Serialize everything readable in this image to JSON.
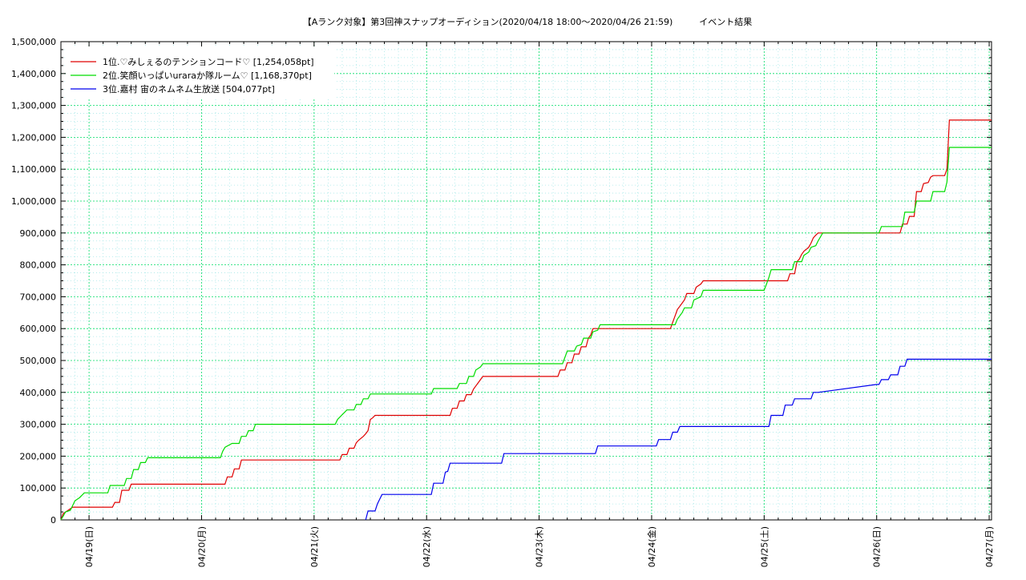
{
  "chart_data": {
    "type": "line",
    "title": "【Aランク対象】第3回神スナップオーディション(2020/04/18 18:00〜2020/04/26 21:59)　　　イベント結果",
    "xlabel": "",
    "ylabel": "",
    "ylim": [
      0,
      1500000
    ],
    "y_ticks": [
      0,
      100000,
      200000,
      300000,
      400000,
      500000,
      600000,
      700000,
      800000,
      900000,
      1000000,
      1100000,
      1200000,
      1300000,
      1400000,
      1500000
    ],
    "y_tick_labels": [
      "0",
      "100,000",
      "200,000",
      "300,000",
      "400,000",
      "500,000",
      "600,000",
      "700,000",
      "800,000",
      "900,000",
      "1,000,000",
      "1,100,000",
      "1,200,000",
      "1,300,000",
      "1,400,000",
      "1,500,000"
    ],
    "x_domain": [
      "2020-04-18 18:00",
      "2020-04-27 00:30"
    ],
    "x_ticks": [
      "2020-04-19 00:00",
      "2020-04-20 00:00",
      "2020-04-21 00:00",
      "2020-04-22 00:00",
      "2020-04-23 00:00",
      "2020-04-24 00:00",
      "2020-04-25 00:00",
      "2020-04-26 00:00",
      "2020-04-27 00:00"
    ],
    "x_tick_labels": [
      "04/19(日)",
      "04/20(月)",
      "04/21(火)",
      "04/22(水)",
      "04/23(木)",
      "04/24(金)",
      "04/25(土)",
      "04/26(日)",
      "04/27(月)"
    ],
    "grid": true,
    "legend_position": "top-left",
    "series": [
      {
        "name": "1位.♡みしぇるのテンションコード♡ [1,254,058pt]",
        "color": "#e00000",
        "points": [
          [
            "2020-04-18 18:00",
            0
          ],
          [
            "2020-04-18 18:30",
            20000
          ],
          [
            "2020-04-18 19:30",
            30000
          ],
          [
            "2020-04-18 20:30",
            40000
          ],
          [
            "2020-04-19 05:00",
            40000
          ],
          [
            "2020-04-19 05:30",
            55000
          ],
          [
            "2020-04-19 06:30",
            55000
          ],
          [
            "2020-04-19 07:00",
            93000
          ],
          [
            "2020-04-19 08:30",
            93000
          ],
          [
            "2020-04-19 09:00",
            112000
          ],
          [
            "2020-04-20 05:00",
            112000
          ],
          [
            "2020-04-20 05:30",
            135000
          ],
          [
            "2020-04-20 06:30",
            135000
          ],
          [
            "2020-04-20 07:00",
            160000
          ],
          [
            "2020-04-20 08:00",
            160000
          ],
          [
            "2020-04-20 08:30",
            188000
          ],
          [
            "2020-04-21 05:30",
            188000
          ],
          [
            "2020-04-21 06:00",
            205000
          ],
          [
            "2020-04-21 07:00",
            205000
          ],
          [
            "2020-04-21 07:30",
            225000
          ],
          [
            "2020-04-21 08:30",
            225000
          ],
          [
            "2020-04-21 09:00",
            242000
          ],
          [
            "2020-04-21 09:30",
            250000
          ],
          [
            "2020-04-21 10:30",
            262000
          ],
          [
            "2020-04-21 11:00",
            270000
          ],
          [
            "2020-04-21 11:30",
            280000
          ],
          [
            "2020-04-21 12:00",
            315000
          ],
          [
            "2020-04-21 12:30",
            320000
          ],
          [
            "2020-04-21 13:00",
            328000
          ],
          [
            "2020-04-22 05:00",
            328000
          ],
          [
            "2020-04-22 05:30",
            350000
          ],
          [
            "2020-04-22 06:30",
            350000
          ],
          [
            "2020-04-22 07:00",
            373000
          ],
          [
            "2020-04-22 08:00",
            373000
          ],
          [
            "2020-04-22 08:30",
            393000
          ],
          [
            "2020-04-22 09:30",
            393000
          ],
          [
            "2020-04-22 10:00",
            410000
          ],
          [
            "2020-04-22 10:30",
            420000
          ],
          [
            "2020-04-22 11:00",
            430000
          ],
          [
            "2020-04-22 12:00",
            450000
          ],
          [
            "2020-04-23 04:00",
            450000
          ],
          [
            "2020-04-23 04:30",
            470000
          ],
          [
            "2020-04-23 05:30",
            470000
          ],
          [
            "2020-04-23 06:00",
            493000
          ],
          [
            "2020-04-23 07:00",
            493000
          ],
          [
            "2020-04-23 07:30",
            520000
          ],
          [
            "2020-04-23 08:30",
            520000
          ],
          [
            "2020-04-23 09:00",
            543000
          ],
          [
            "2020-04-23 10:00",
            543000
          ],
          [
            "2020-04-23 10:30",
            570000
          ],
          [
            "2020-04-23 11:00",
            580000
          ],
          [
            "2020-04-23 11:30",
            600000
          ],
          [
            "2020-04-24 04:00",
            600000
          ],
          [
            "2020-04-24 04:30",
            620000
          ],
          [
            "2020-04-24 05:00",
            640000
          ],
          [
            "2020-04-24 05:30",
            660000
          ],
          [
            "2020-04-24 06:00",
            670000
          ],
          [
            "2020-04-24 06:30",
            680000
          ],
          [
            "2020-04-24 07:00",
            690000
          ],
          [
            "2020-04-24 07:30",
            710000
          ],
          [
            "2020-04-24 09:00",
            710000
          ],
          [
            "2020-04-24 09:30",
            730000
          ],
          [
            "2020-04-24 10:30",
            740000
          ],
          [
            "2020-04-24 11:00",
            750000
          ],
          [
            "2020-04-25 05:00",
            750000
          ],
          [
            "2020-04-25 05:30",
            772000
          ],
          [
            "2020-04-25 06:30",
            772000
          ],
          [
            "2020-04-25 07:00",
            810000
          ],
          [
            "2020-04-25 07:30",
            818000
          ],
          [
            "2020-04-25 08:00",
            833000
          ],
          [
            "2020-04-25 08:30",
            843000
          ],
          [
            "2020-04-25 09:30",
            855000
          ],
          [
            "2020-04-25 10:00",
            868000
          ],
          [
            "2020-04-25 10:30",
            885000
          ],
          [
            "2020-04-25 11:00",
            893000
          ],
          [
            "2020-04-25 11:30",
            900000
          ],
          [
            "2020-04-26 05:00",
            900000
          ],
          [
            "2020-04-26 05:30",
            928000
          ],
          [
            "2020-04-26 06:30",
            928000
          ],
          [
            "2020-04-26 07:00",
            952000
          ],
          [
            "2020-04-26 08:00",
            952000
          ],
          [
            "2020-04-26 08:30",
            1030000
          ],
          [
            "2020-04-26 09:30",
            1030000
          ],
          [
            "2020-04-26 10:00",
            1055000
          ],
          [
            "2020-04-26 11:00",
            1058000
          ],
          [
            "2020-04-26 11:30",
            1075000
          ],
          [
            "2020-04-26 12:00",
            1080000
          ],
          [
            "2020-04-26 14:30",
            1080000
          ],
          [
            "2020-04-26 15:00",
            1100000
          ],
          [
            "2020-04-26 15:30",
            1254058
          ],
          [
            "2020-04-27 00:30",
            1254058
          ]
        ]
      },
      {
        "name": "2位.笑顔いっぱいuraraか隊ルーム♡ [1,168,370pt]",
        "color": "#00dd00",
        "points": [
          [
            "2020-04-18 18:00",
            0
          ],
          [
            "2020-04-18 18:30",
            12000
          ],
          [
            "2020-04-18 19:00",
            25000
          ],
          [
            "2020-04-18 20:00",
            30000
          ],
          [
            "2020-04-18 20:30",
            45000
          ],
          [
            "2020-04-18 21:00",
            60000
          ],
          [
            "2020-04-18 22:00",
            70000
          ],
          [
            "2020-04-18 23:00",
            85000
          ],
          [
            "2020-04-19 04:00",
            85000
          ],
          [
            "2020-04-19 04:30",
            108000
          ],
          [
            "2020-04-19 07:30",
            108000
          ],
          [
            "2020-04-19 08:00",
            130000
          ],
          [
            "2020-04-19 09:00",
            130000
          ],
          [
            "2020-04-19 09:30",
            158000
          ],
          [
            "2020-04-19 10:30",
            158000
          ],
          [
            "2020-04-19 11:00",
            180000
          ],
          [
            "2020-04-19 12:00",
            180000
          ],
          [
            "2020-04-19 12:30",
            195000
          ],
          [
            "2020-04-20 04:00",
            195000
          ],
          [
            "2020-04-20 04:30",
            215000
          ],
          [
            "2020-04-20 05:00",
            228000
          ],
          [
            "2020-04-20 06:30",
            240000
          ],
          [
            "2020-04-20 08:00",
            240000
          ],
          [
            "2020-04-20 08:30",
            262000
          ],
          [
            "2020-04-20 09:30",
            262000
          ],
          [
            "2020-04-20 10:00",
            280000
          ],
          [
            "2020-04-20 11:00",
            280000
          ],
          [
            "2020-04-20 11:30",
            300000
          ],
          [
            "2020-04-21 04:30",
            300000
          ],
          [
            "2020-04-21 05:00",
            315000
          ],
          [
            "2020-04-21 06:00",
            330000
          ],
          [
            "2020-04-21 07:00",
            345000
          ],
          [
            "2020-04-21 08:30",
            345000
          ],
          [
            "2020-04-21 09:00",
            362000
          ],
          [
            "2020-04-21 10:00",
            362000
          ],
          [
            "2020-04-21 10:30",
            380000
          ],
          [
            "2020-04-21 11:30",
            380000
          ],
          [
            "2020-04-21 12:00",
            395000
          ],
          [
            "2020-04-22 01:00",
            395000
          ],
          [
            "2020-04-22 01:30",
            412000
          ],
          [
            "2020-04-22 06:30",
            412000
          ],
          [
            "2020-04-22 07:00",
            428000
          ],
          [
            "2020-04-22 08:30",
            428000
          ],
          [
            "2020-04-22 09:00",
            450000
          ],
          [
            "2020-04-22 10:00",
            450000
          ],
          [
            "2020-04-22 10:30",
            470000
          ],
          [
            "2020-04-22 11:30",
            480000
          ],
          [
            "2020-04-22 12:00",
            490000
          ],
          [
            "2020-04-23 05:00",
            490000
          ],
          [
            "2020-04-23 05:30",
            510000
          ],
          [
            "2020-04-23 06:00",
            530000
          ],
          [
            "2020-04-23 07:30",
            530000
          ],
          [
            "2020-04-23 08:00",
            545000
          ],
          [
            "2020-04-23 09:00",
            550000
          ],
          [
            "2020-04-23 09:30",
            570000
          ],
          [
            "2020-04-23 11:00",
            570000
          ],
          [
            "2020-04-23 11:30",
            590000
          ],
          [
            "2020-04-23 12:30",
            595000
          ],
          [
            "2020-04-23 13:00",
            612000
          ],
          [
            "2020-04-24 05:00",
            612000
          ],
          [
            "2020-04-24 05:30",
            630000
          ],
          [
            "2020-04-24 06:30",
            650000
          ],
          [
            "2020-04-24 07:00",
            665000
          ],
          [
            "2020-04-24 08:30",
            665000
          ],
          [
            "2020-04-24 09:00",
            690000
          ],
          [
            "2020-04-24 10:30",
            700000
          ],
          [
            "2020-04-24 11:00",
            720000
          ],
          [
            "2020-04-25 00:00",
            720000
          ],
          [
            "2020-04-25 00:30",
            740000
          ],
          [
            "2020-04-25 01:00",
            760000
          ],
          [
            "2020-04-25 01:30",
            785000
          ],
          [
            "2020-04-25 06:00",
            785000
          ],
          [
            "2020-04-25 06:30",
            810000
          ],
          [
            "2020-04-25 08:00",
            810000
          ],
          [
            "2020-04-25 08:30",
            830000
          ],
          [
            "2020-04-25 09:30",
            840000
          ],
          [
            "2020-04-25 10:00",
            855000
          ],
          [
            "2020-04-25 11:00",
            860000
          ],
          [
            "2020-04-25 11:30",
            875000
          ],
          [
            "2020-04-25 12:30",
            900000
          ],
          [
            "2020-04-26 00:30",
            900000
          ],
          [
            "2020-04-26 01:00",
            920000
          ],
          [
            "2020-04-26 05:30",
            920000
          ],
          [
            "2020-04-26 06:00",
            965000
          ],
          [
            "2020-04-26 08:00",
            965000
          ],
          [
            "2020-04-26 08:30",
            1000000
          ],
          [
            "2020-04-26 11:30",
            1000000
          ],
          [
            "2020-04-26 12:00",
            1030000
          ],
          [
            "2020-04-26 14:30",
            1030000
          ],
          [
            "2020-04-26 15:00",
            1060000
          ],
          [
            "2020-04-26 15:30",
            1168370
          ],
          [
            "2020-04-27 00:30",
            1168370
          ]
        ]
      },
      {
        "name": "3位.嘉村 宙のネムネム生放送 [504,077pt]",
        "color": "#0000ee",
        "points": [
          [
            "2020-04-21 11:00",
            0
          ],
          [
            "2020-04-21 11:30",
            28000
          ],
          [
            "2020-04-21 13:00",
            28000
          ],
          [
            "2020-04-21 13:30",
            50000
          ],
          [
            "2020-04-21 14:00",
            65000
          ],
          [
            "2020-04-21 14:30",
            80000
          ],
          [
            "2020-04-22 01:00",
            80000
          ],
          [
            "2020-04-22 01:30",
            115000
          ],
          [
            "2020-04-22 03:30",
            115000
          ],
          [
            "2020-04-22 04:00",
            150000
          ],
          [
            "2020-04-22 04:30",
            152000
          ],
          [
            "2020-04-22 05:00",
            178000
          ],
          [
            "2020-04-22 16:00",
            178000
          ],
          [
            "2020-04-22 16:30",
            208000
          ],
          [
            "2020-04-23 12:00",
            208000
          ],
          [
            "2020-04-23 12:30",
            232000
          ],
          [
            "2020-04-24 01:00",
            232000
          ],
          [
            "2020-04-24 01:30",
            252000
          ],
          [
            "2020-04-24 04:00",
            252000
          ],
          [
            "2020-04-24 04:30",
            275000
          ],
          [
            "2020-04-24 05:30",
            275000
          ],
          [
            "2020-04-24 06:00",
            293000
          ],
          [
            "2020-04-25 01:00",
            293000
          ],
          [
            "2020-04-25 01:30",
            328000
          ],
          [
            "2020-04-25 04:00",
            328000
          ],
          [
            "2020-04-25 04:30",
            360000
          ],
          [
            "2020-04-25 06:00",
            360000
          ],
          [
            "2020-04-25 06:30",
            380000
          ],
          [
            "2020-04-25 10:00",
            380000
          ],
          [
            "2020-04-25 10:30",
            400000
          ],
          [
            "2020-04-25 11:30",
            400000
          ],
          [
            "2020-04-26 00:00",
            425000
          ],
          [
            "2020-04-26 00:30",
            425000
          ],
          [
            "2020-04-26 01:00",
            440000
          ],
          [
            "2020-04-26 02:30",
            440000
          ],
          [
            "2020-04-26 03:00",
            455000
          ],
          [
            "2020-04-26 04:30",
            455000
          ],
          [
            "2020-04-26 05:00",
            482000
          ],
          [
            "2020-04-26 06:00",
            482000
          ],
          [
            "2020-04-26 06:30",
            504077
          ],
          [
            "2020-04-27 00:30",
            504077
          ]
        ]
      }
    ]
  }
}
